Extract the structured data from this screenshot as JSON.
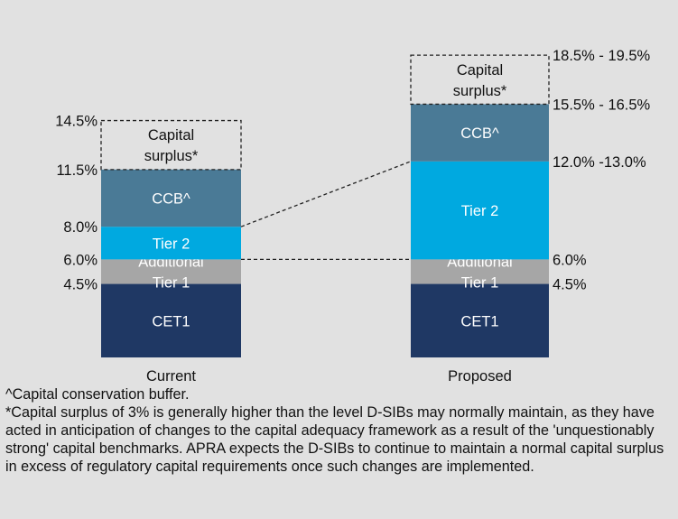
{
  "chart_data": {
    "type": "bar",
    "stacked": true,
    "categories": [
      "Current",
      "Proposed"
    ],
    "colors": {
      "CET1": "#1f3864",
      "Additional Tier 1": "#a6a6a6",
      "Tier 2": "#00a9e0",
      "CCB^": "#4a7a96",
      "text_light": "#ffffff",
      "text_dark": "#111111"
    },
    "bars": [
      {
        "category": "Current",
        "segments": [
          {
            "label": "CET1",
            "from": 0,
            "to": 4.5
          },
          {
            "label_lines": [
              "Additional",
              "Tier 1"
            ],
            "from": 4.5,
            "to": 6.0
          },
          {
            "label": "Tier 2",
            "from": 6.0,
            "to": 8.0
          },
          {
            "label": "CCB^",
            "from": 8.0,
            "to": 11.5
          }
        ],
        "surplus": {
          "label_lines": [
            "Capital",
            "surplus*"
          ],
          "from": 11.5,
          "to": 14.5
        },
        "axis_labels": [
          {
            "text": "4.5%",
            "value": 4.5
          },
          {
            "text": "6.0%",
            "value": 6.0
          },
          {
            "text": "8.0%",
            "value": 8.0
          },
          {
            "text": "11.5%",
            "value": 11.5
          },
          {
            "text": "14.5%",
            "value": 14.5
          }
        ]
      },
      {
        "category": "Proposed",
        "segments": [
          {
            "label": "CET1",
            "from": 0,
            "to": 4.5
          },
          {
            "label_lines": [
              "Additional",
              "Tier 1"
            ],
            "from": 4.5,
            "to": 6.0
          },
          {
            "label": "Tier 2",
            "from": 6.0,
            "to": 12.0
          },
          {
            "label": "CCB^",
            "from": 12.0,
            "to": 15.5
          }
        ],
        "surplus": {
          "label_lines": [
            "Capital",
            "surplus*"
          ],
          "from": 15.5,
          "to": 18.5
        },
        "axis_labels": [
          {
            "text": "4.5%",
            "value": 4.5
          },
          {
            "text": "6.0%",
            "value": 6.0
          },
          {
            "text": "12.0% -13.0%",
            "value": 12.0
          },
          {
            "text": "15.5% - 16.5%",
            "value": 15.5
          },
          {
            "text": "18.5% - 19.5%",
            "value": 18.5
          }
        ]
      }
    ],
    "connectors": [
      {
        "from_value": 8.0,
        "to_value": 12.0
      },
      {
        "from_value": 6.0,
        "to_value": 6.0
      }
    ]
  },
  "notes": {
    "line1": "^Capital conservation buffer.",
    "line2": "*Capital surplus of 3% is generally higher than the level D-SIBs may normally maintain, as they have acted in anticipation of changes to the capital adequacy framework as a result of the 'unquestionably strong' capital benchmarks. APRA expects the D-SIBs to continue to maintain a normal capital surplus in excess of regulatory capital requirements once such changes are implemented."
  }
}
